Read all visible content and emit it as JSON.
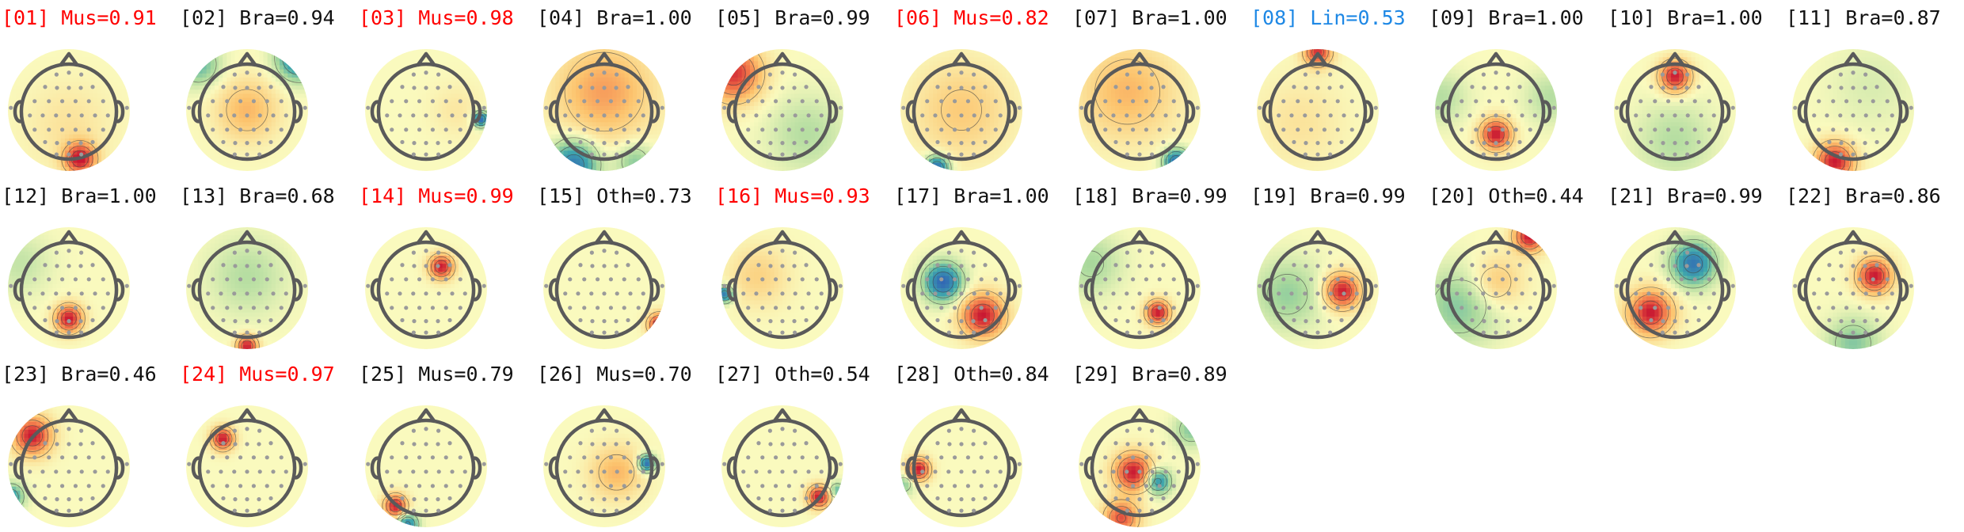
{
  "title": "",
  "colors": {
    "default_label": "#111111",
    "muscle_label": "#ff0000",
    "line_label": "#1e88e5",
    "head_outline": "#5a5a5a",
    "electrode": "#9a9a9a",
    "contour": "#444444"
  },
  "components": [
    {
      "index": "01",
      "label": "[01] Mus=0.91",
      "category": "Mus",
      "score": 0.91,
      "flagged": "mus",
      "blobs": [
        {
          "u": 0.18,
          "v": 0.8,
          "a": 1.0,
          "s": 0.18
        },
        {
          "u": 0.0,
          "v": 0.25,
          "a": 0.15,
          "s": 0.5
        }
      ]
    },
    {
      "index": "02",
      "label": "[02] Bra=0.94",
      "category": "Bra",
      "score": 0.94,
      "flagged": "none",
      "blobs": [
        {
          "u": 0.85,
          "v": -0.85,
          "a": -0.9,
          "s": 0.25
        },
        {
          "u": -0.8,
          "v": -0.75,
          "a": -0.5,
          "s": 0.25
        },
        {
          "u": 0.0,
          "v": 0.0,
          "a": 0.4,
          "s": 0.35
        }
      ]
    },
    {
      "index": "03",
      "label": "[03] Mus=0.98",
      "category": "Mus",
      "score": 0.98,
      "flagged": "mus",
      "blobs": [
        {
          "u": 0.9,
          "v": 0.15,
          "a": -1.0,
          "s": 0.09
        },
        {
          "u": 0.5,
          "v": 0.0,
          "a": 0.12,
          "s": 0.3
        }
      ]
    },
    {
      "index": "04",
      "label": "[04] Bra=1.00",
      "category": "Bra",
      "score": 1.0,
      "flagged": "none",
      "blobs": [
        {
          "u": 0.0,
          "v": -0.3,
          "a": 0.5,
          "s": 0.55
        },
        {
          "u": -0.5,
          "v": 0.9,
          "a": -0.9,
          "s": 0.28
        },
        {
          "u": 0.5,
          "v": 0.85,
          "a": -0.4,
          "s": 0.22
        }
      ]
    },
    {
      "index": "05",
      "label": "[05] Bra=0.99",
      "category": "Bra",
      "score": 0.99,
      "flagged": "none",
      "blobs": [
        {
          "u": -0.8,
          "v": -0.6,
          "a": 0.9,
          "s": 0.32
        },
        {
          "u": 0.4,
          "v": 0.4,
          "a": -0.25,
          "s": 0.45
        }
      ]
    },
    {
      "index": "06",
      "label": "[06] Mus=0.82",
      "category": "Mus",
      "score": 0.82,
      "flagged": "mus",
      "blobs": [
        {
          "u": -0.4,
          "v": 0.95,
          "a": -1.0,
          "s": 0.14
        },
        {
          "u": 0.0,
          "v": 0.0,
          "a": 0.3,
          "s": 0.55
        }
      ]
    },
    {
      "index": "07",
      "label": "[07] Bra=1.00",
      "category": "Bra",
      "score": 1.0,
      "flagged": "none",
      "blobs": [
        {
          "u": 0.6,
          "v": 0.85,
          "a": -0.95,
          "s": 0.15
        },
        {
          "u": -0.2,
          "v": -0.3,
          "a": 0.4,
          "s": 0.55
        }
      ]
    },
    {
      "index": "08",
      "label": "[08] Lin=0.53",
      "category": "Lin",
      "score": 0.53,
      "flagged": "lin",
      "blobs": [
        {
          "u": 0.0,
          "v": -0.95,
          "a": 0.9,
          "s": 0.16
        },
        {
          "u": -0.3,
          "v": 0.2,
          "a": 0.15,
          "s": 0.5
        }
      ]
    },
    {
      "index": "09",
      "label": "[09] Bra=1.00",
      "category": "Bra",
      "score": 1.0,
      "flagged": "none",
      "blobs": [
        {
          "u": 0.0,
          "v": 0.4,
          "a": 1.0,
          "s": 0.18
        },
        {
          "u": -0.9,
          "v": -0.2,
          "a": -0.25,
          "s": 0.3
        },
        {
          "u": 0.9,
          "v": -0.2,
          "a": -0.25,
          "s": 0.3
        }
      ]
    },
    {
      "index": "10",
      "label": "[10] Bra=1.00",
      "category": "Bra",
      "score": 1.0,
      "flagged": "none",
      "blobs": [
        {
          "u": 0.0,
          "v": -0.55,
          "a": 1.0,
          "s": 0.18
        },
        {
          "u": 0.0,
          "v": 0.5,
          "a": -0.25,
          "s": 0.45
        }
      ]
    },
    {
      "index": "11",
      "label": "[11] Bra=0.87",
      "category": "Bra",
      "score": 0.87,
      "flagged": "none",
      "blobs": [
        {
          "u": -0.3,
          "v": 0.85,
          "a": 1.0,
          "s": 0.22
        },
        {
          "u": 0.3,
          "v": -0.4,
          "a": -0.12,
          "s": 0.5
        }
      ]
    },
    {
      "index": "12",
      "label": "[12] Bra=1.00",
      "category": "Bra",
      "score": 1.0,
      "flagged": "none",
      "blobs": [
        {
          "u": 0.0,
          "v": 0.5,
          "a": 1.0,
          "s": 0.16
        },
        {
          "u": -0.8,
          "v": -0.4,
          "a": -0.2,
          "s": 0.35
        }
      ]
    },
    {
      "index": "13",
      "label": "[13] Bra=0.68",
      "category": "Bra",
      "score": 0.68,
      "flagged": "none",
      "blobs": [
        {
          "u": 0.0,
          "v": 0.95,
          "a": 1.0,
          "s": 0.12
        },
        {
          "u": 0.0,
          "v": -0.2,
          "a": -0.25,
          "s": 0.45
        }
      ]
    },
    {
      "index": "14",
      "label": "[14] Mus=0.99",
      "category": "Mus",
      "score": 0.99,
      "flagged": "mus",
      "blobs": [
        {
          "u": 0.25,
          "v": -0.35,
          "a": 1.0,
          "s": 0.14
        }
      ]
    },
    {
      "index": "15",
      "label": "[15] Oth=0.73",
      "category": "Oth",
      "score": 0.73,
      "flagged": "none",
      "blobs": [
        {
          "u": 0.9,
          "v": 0.6,
          "a": 1.0,
          "s": 0.13
        },
        {
          "u": 0.95,
          "v": 0.85,
          "a": -0.6,
          "s": 0.1
        }
      ]
    },
    {
      "index": "16",
      "label": "[16] Mus=0.93",
      "category": "Mus",
      "score": 0.93,
      "flagged": "mus",
      "blobs": [
        {
          "u": -0.95,
          "v": 0.1,
          "a": -0.9,
          "s": 0.1
        },
        {
          "u": -0.4,
          "v": -0.2,
          "a": 0.25,
          "s": 0.35
        }
      ]
    },
    {
      "index": "17",
      "label": "[17] Bra=1.00",
      "category": "Bra",
      "score": 1.0,
      "flagged": "none",
      "blobs": [
        {
          "u": -0.3,
          "v": -0.1,
          "a": -1.0,
          "s": 0.22
        },
        {
          "u": 0.35,
          "v": 0.45,
          "a": 1.0,
          "s": 0.25
        }
      ]
    },
    {
      "index": "18",
      "label": "[18] Bra=0.99",
      "category": "Bra",
      "score": 0.99,
      "flagged": "none",
      "blobs": [
        {
          "u": 0.3,
          "v": 0.4,
          "a": 1.0,
          "s": 0.14
        },
        {
          "u": -0.8,
          "v": -0.4,
          "a": -0.3,
          "s": 0.35
        }
      ]
    },
    {
      "index": "19",
      "label": "[19] Bra=0.99",
      "category": "Bra",
      "score": 0.99,
      "flagged": "none",
      "blobs": [
        {
          "u": 0.4,
          "v": 0.05,
          "a": 1.0,
          "s": 0.2
        },
        {
          "u": -0.5,
          "v": 0.1,
          "a": -0.35,
          "s": 0.4
        }
      ]
    },
    {
      "index": "20",
      "label": "[20] Oth=0.44",
      "category": "Oth",
      "score": 0.44,
      "flagged": "none",
      "blobs": [
        {
          "u": 0.55,
          "v": -0.85,
          "a": 1.0,
          "s": 0.18
        },
        {
          "u": -0.6,
          "v": 0.3,
          "a": -0.4,
          "s": 0.45
        },
        {
          "u": 0.0,
          "v": -0.1,
          "a": 0.35,
          "s": 0.3
        }
      ]
    },
    {
      "index": "21",
      "label": "[21] Bra=0.99",
      "category": "Bra",
      "score": 0.99,
      "flagged": "none",
      "blobs": [
        {
          "u": -0.4,
          "v": 0.4,
          "a": 1.0,
          "s": 0.25
        },
        {
          "u": 0.3,
          "v": -0.4,
          "a": -0.9,
          "s": 0.25
        }
      ]
    },
    {
      "index": "22",
      "label": "[22] Bra=0.86",
      "category": "Bra",
      "score": 0.86,
      "flagged": "none",
      "blobs": [
        {
          "u": 0.35,
          "v": -0.2,
          "a": 1.0,
          "s": 0.2
        },
        {
          "u": 0.0,
          "v": 0.9,
          "a": -0.4,
          "s": 0.3
        }
      ]
    },
    {
      "index": "23",
      "label": "[23] Bra=0.46",
      "category": "Bra",
      "score": 0.46,
      "flagged": "none",
      "blobs": [
        {
          "u": -0.6,
          "v": -0.5,
          "a": 1.0,
          "s": 0.22
        },
        {
          "u": -0.95,
          "v": 0.5,
          "a": -0.7,
          "s": 0.15
        }
      ]
    },
    {
      "index": "24",
      "label": "[24] Mus=0.97",
      "category": "Mus",
      "score": 0.97,
      "flagged": "mus",
      "blobs": [
        {
          "u": -0.4,
          "v": -0.45,
          "a": 1.0,
          "s": 0.13
        }
      ]
    },
    {
      "index": "25",
      "label": "[25] Mus=0.79",
      "category": "Mus",
      "score": 0.79,
      "flagged": "none",
      "blobs": [
        {
          "u": -0.5,
          "v": 0.65,
          "a": 1.0,
          "s": 0.13
        },
        {
          "u": -0.3,
          "v": 0.95,
          "a": -0.8,
          "s": 0.12
        }
      ]
    },
    {
      "index": "26",
      "label": "[26] Mus=0.70",
      "category": "Mus",
      "score": 0.7,
      "flagged": "none",
      "blobs": [
        {
          "u": 0.7,
          "v": -0.05,
          "a": -1.0,
          "s": 0.1
        },
        {
          "u": 0.2,
          "v": 0.1,
          "a": 0.4,
          "s": 0.3
        }
      ]
    },
    {
      "index": "27",
      "label": "[27] Oth=0.54",
      "category": "Oth",
      "score": 0.54,
      "flagged": "none",
      "blobs": [
        {
          "u": 0.6,
          "v": 0.5,
          "a": 1.0,
          "s": 0.13
        },
        {
          "u": 0.9,
          "v": 0.4,
          "a": -0.5,
          "s": 0.1
        }
      ]
    },
    {
      "index": "28",
      "label": "[28] Oth=0.84",
      "category": "Oth",
      "score": 0.84,
      "flagged": "none",
      "blobs": [
        {
          "u": -0.7,
          "v": 0.05,
          "a": 1.0,
          "s": 0.13
        },
        {
          "u": -0.95,
          "v": 0.3,
          "a": -0.4,
          "s": 0.12
        }
      ]
    },
    {
      "index": "29",
      "label": "[29] Bra=0.89",
      "category": "Bra",
      "score": 0.89,
      "flagged": "none",
      "blobs": [
        {
          "u": -0.1,
          "v": 0.1,
          "a": 1.0,
          "s": 0.22
        },
        {
          "u": 0.3,
          "v": 0.25,
          "a": -0.8,
          "s": 0.15
        },
        {
          "u": -0.3,
          "v": 0.85,
          "a": 0.8,
          "s": 0.2
        },
        {
          "u": 0.85,
          "v": -0.6,
          "a": -0.4,
          "s": 0.2
        }
      ]
    }
  ]
}
